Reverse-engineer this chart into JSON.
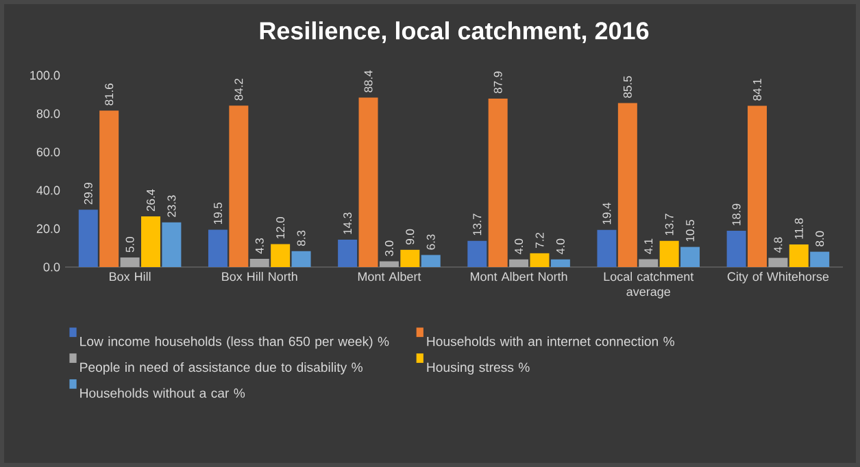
{
  "chart_data": {
    "type": "bar",
    "title": "Resilience, local catchment, 2016",
    "categories": [
      "Box Hill",
      "Box Hill North",
      "Mont Albert",
      "Mont Albert North",
      "Local catchment average",
      "City of Whitehorse"
    ],
    "series": [
      {
        "name": "Low income households (less than 650 per week) %",
        "color": "#4472c4",
        "values": [
          29.9,
          19.5,
          14.3,
          13.7,
          19.4,
          18.9
        ],
        "value_labels": [
          "29.9",
          "19.5",
          "14.3",
          "13.7",
          "19.4",
          "18.9"
        ]
      },
      {
        "name": "Households with an internet connection %",
        "color": "#ed7d31",
        "values": [
          81.6,
          84.2,
          88.4,
          87.9,
          85.5,
          84.1
        ],
        "value_labels": [
          "81.6",
          "84.2",
          "88.4",
          "87.9",
          "85.5",
          "84.1"
        ]
      },
      {
        "name": "People in need of assistance due to disability %",
        "color": "#a5a5a5",
        "values": [
          5.0,
          4.3,
          3.0,
          4.0,
          4.1,
          4.8
        ],
        "value_labels": [
          "5.0",
          "4.3",
          "3.0",
          "4.0",
          "4.1",
          "4.8"
        ]
      },
      {
        "name": "Housing stress %",
        "color": "#ffc000",
        "values": [
          26.4,
          12.0,
          9.0,
          7.2,
          13.7,
          11.8
        ],
        "value_labels": [
          "26.4",
          "12.0",
          "9.0",
          "7.2",
          "13.7",
          "11.8"
        ]
      },
      {
        "name": "Households without a car %",
        "color": "#5b9bd5",
        "values": [
          23.3,
          8.3,
          6.3,
          4.0,
          10.5,
          8.0
        ],
        "value_labels": [
          "23.3",
          "8.3",
          "6.3",
          "4.0",
          "10.5",
          "8.0"
        ]
      }
    ],
    "ylim": [
      0,
      100
    ],
    "yticks": [
      {
        "value": 0,
        "label": "0.0"
      },
      {
        "value": 20,
        "label": "20.0"
      },
      {
        "value": 40,
        "label": "40.0"
      },
      {
        "value": 60,
        "label": "60.0"
      },
      {
        "value": 80,
        "label": "80.0"
      },
      {
        "value": 100,
        "label": "100.0"
      }
    ],
    "grid": false,
    "legend": "bottom"
  }
}
